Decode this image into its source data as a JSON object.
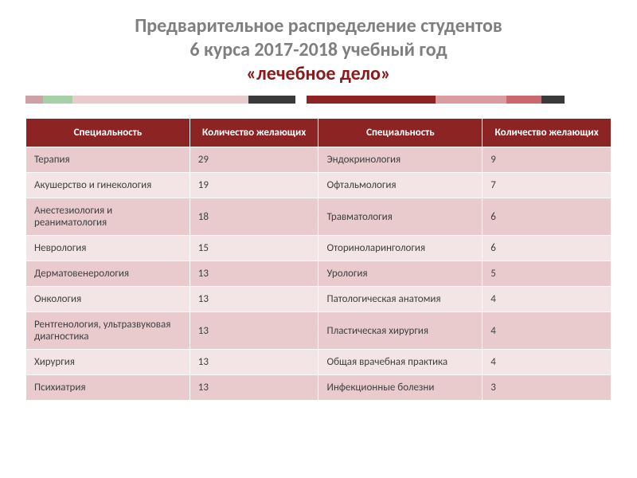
{
  "title": {
    "line1": "Предварительное распределение студентов",
    "line2": "6 курса 2017-2018 учебный год",
    "highlight": "«лечебное дело»"
  },
  "divider": {
    "segments": [
      {
        "color": "#cfa1a6",
        "width": 3
      },
      {
        "color": "#a8d0a8",
        "width": 5
      },
      {
        "color": "#e9cbce",
        "width": 30
      },
      {
        "color": "#3a3a3a",
        "width": 8
      },
      {
        "color": "#ffffff",
        "width": 2
      },
      {
        "color": "#8d2424",
        "width": 22
      },
      {
        "color": "#d89ca1",
        "width": 12
      },
      {
        "color": "#c9686e",
        "width": 6
      },
      {
        "color": "#3a3a3a",
        "width": 4
      },
      {
        "color": "#ffffff",
        "width": 8
      }
    ]
  },
  "table": {
    "headers": {
      "spec": "Специальность",
      "count": "Количество желающих"
    },
    "header_bg": "#8d2424",
    "header_fg": "#ffffff",
    "row_odd_bg": "#e9cbce",
    "row_even_bg": "#f3e4e5",
    "fontsize": 13,
    "rows": [
      {
        "spec1": "Терапия",
        "count1": "29",
        "spec2": "Эндокринология",
        "count2": "9"
      },
      {
        "spec1": "Акушерство и гинекология",
        "count1": "19",
        "spec2": "Офтальмология",
        "count2": "7"
      },
      {
        "spec1": "Анестезиология и реаниматология",
        "count1": "18",
        "spec2": "Травматология",
        "count2": "6"
      },
      {
        "spec1": "Неврология",
        "count1": "15",
        "spec2": "Оториноларингология",
        "count2": "6"
      },
      {
        "spec1": "Дерматовенерология",
        "count1": "13",
        "spec2": "Урология",
        "count2": "5"
      },
      {
        "spec1": "Онкология",
        "count1": "13",
        "spec2": "Патологическая анатомия",
        "count2": "4"
      },
      {
        "spec1": "Рентгенология, ультразвуковая диагностика",
        "count1": "13",
        "spec2": "Пластическая хирургия",
        "count2": "4"
      },
      {
        "spec1": "Хирургия",
        "count1": "13",
        "spec2": "Общая врачебная практика",
        "count2": "4"
      },
      {
        "spec1": "Психиатрия",
        "count1": "13",
        "spec2": "Инфекционные болезни",
        "count2": "3"
      }
    ]
  }
}
